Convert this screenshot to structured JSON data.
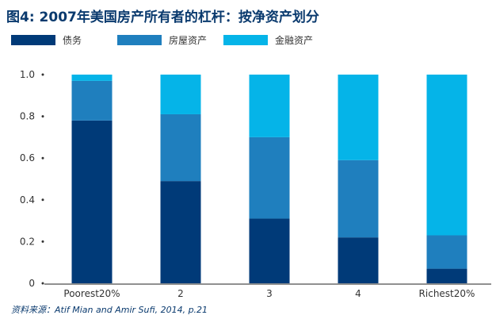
{
  "chart_data": {
    "type": "bar",
    "stacked": true,
    "title": "图4: 2007年美国房产所有者的杠杆：按净资产划分",
    "categories": [
      "Poorest20%",
      "2",
      "3",
      "4",
      "Richest20%"
    ],
    "series": [
      {
        "name": "债务",
        "values": [
          0.78,
          0.49,
          0.31,
          0.22,
          0.07
        ],
        "color": "#003a78"
      },
      {
        "name": "房屋资产",
        "values": [
          0.19,
          0.32,
          0.39,
          0.37,
          0.16
        ],
        "color": "#1f7fbe"
      },
      {
        "name": "金融资产",
        "values": [
          0.04,
          0.2,
          0.31,
          0.43,
          0.79
        ],
        "color": "#05b4e8"
      }
    ],
    "ylim": [
      0,
      1.0
    ],
    "yticks": [
      "0",
      "0.2",
      "0.4",
      "0.6",
      "0.8",
      "1.0"
    ],
    "grid": false,
    "legend_position": "top-left",
    "source": "资料来源：Atif Mian and Amir Sufi, 2014, p.21"
  }
}
